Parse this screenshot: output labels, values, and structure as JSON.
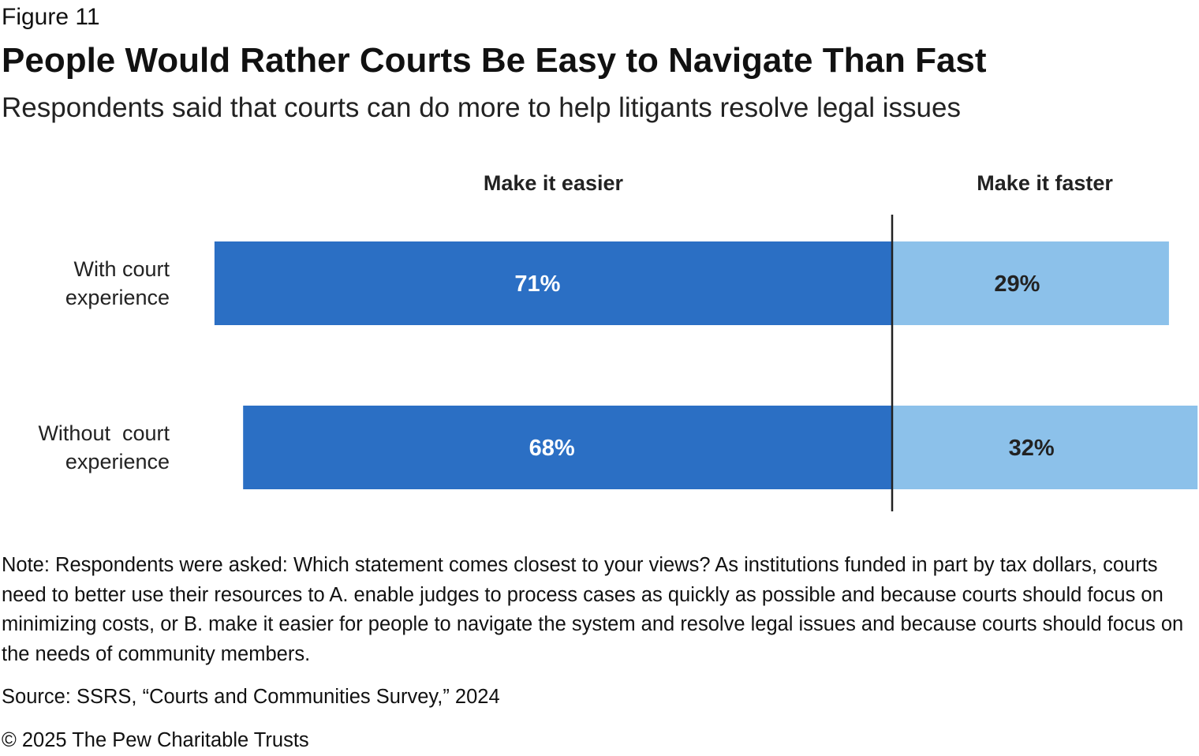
{
  "figure_label": "Figure 11",
  "title": "People Would Rather Courts Be Easy to Navigate Than Fast",
  "subtitle": "Respondents said that courts can do more to help litigants resolve legal issues",
  "note": "Note: Respondents were asked: Which statement comes closest to your views? As institutions funded in part by tax dollars, courts need to better use their resources to A. enable judges to process cases as quickly as possible and because courts should focus on minimizing costs, or B. make it easier for people to navigate the system and resolve legal issues and because courts should focus on the needs of community members.",
  "source": "Source: SSRS, “Courts and Communities Survey,” 2024",
  "copyright": "© 2025 The Pew Charitable Trusts",
  "colors": {
    "easier": "#2b6fc4",
    "faster": "#8cc1ea",
    "divider": "#222222"
  },
  "chart_data": {
    "type": "bar",
    "orientation": "horizontal",
    "stacked": true,
    "diverging": true,
    "categories": [
      [
        "With court",
        "experience"
      ],
      [
        "Without  court",
        "experience"
      ]
    ],
    "series": [
      {
        "name": "Make it easier",
        "values": [
          71,
          68
        ],
        "labels": [
          "71%",
          "68%"
        ]
      },
      {
        "name": "Make it faster",
        "values": [
          29,
          32
        ],
        "labels": [
          "29%",
          "32%"
        ]
      }
    ],
    "unit": "%",
    "grid": false,
    "legend": "top"
  }
}
